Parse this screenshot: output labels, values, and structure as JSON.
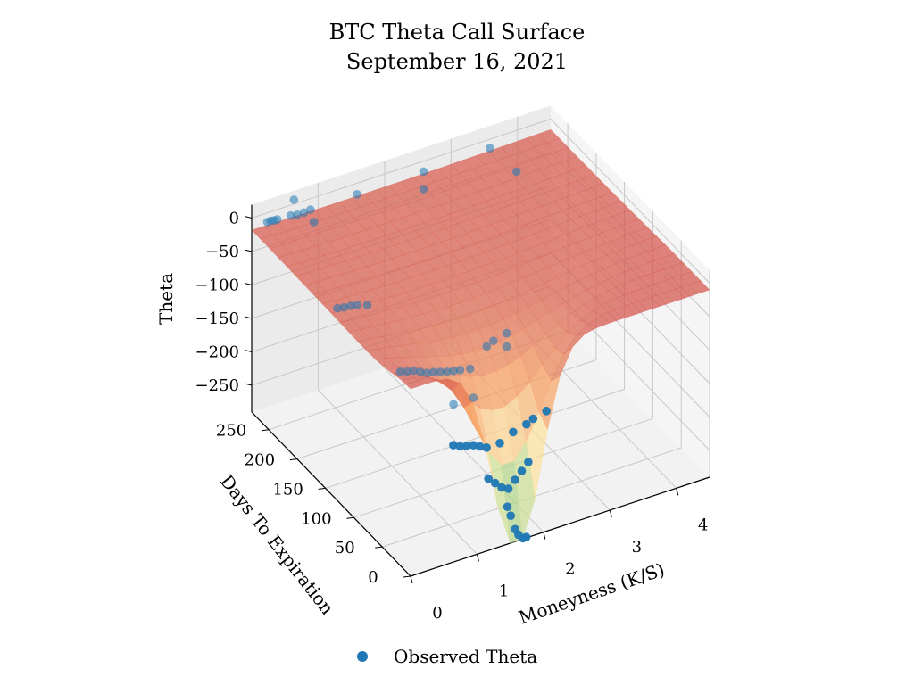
{
  "chart_data": {
    "type": "3d-surface-scatter",
    "title": "BTC Theta Call Surface",
    "subtitle": "September 16, 2021",
    "xlabel": "Moneyness (K/S)",
    "ylabel": "Days To Expiration",
    "zlabel": "Theta",
    "x_ticks": [
      "0",
      "1",
      "2",
      "3",
      "4"
    ],
    "y_ticks": [
      "0",
      "50",
      "100",
      "150",
      "200",
      "250"
    ],
    "z_ticks": [
      "0",
      "−50",
      "−100",
      "−150",
      "−200",
      "−250"
    ],
    "xlim": [
      0,
      4.5
    ],
    "ylim": [
      0,
      280
    ],
    "zlim": [
      -290,
      20
    ],
    "grid": true,
    "legend_position": "bottom",
    "legend": [
      {
        "name": "Observed Theta",
        "color": "#1f77b4"
      }
    ],
    "surface_colormap": "Spectral (red = near zero, green = strongly negative)",
    "series": [
      {
        "name": "Observed Theta",
        "type": "scatter",
        "color": "#1f77b4",
        "points": [
          {
            "x": 0.15,
            "y": 270,
            "z": -2
          },
          {
            "x": 0.2,
            "y": 270,
            "z": -2
          },
          {
            "x": 0.25,
            "y": 270,
            "z": -3
          },
          {
            "x": 0.3,
            "y": 270,
            "z": -3
          },
          {
            "x": 0.5,
            "y": 270,
            "z": -4
          },
          {
            "x": 0.6,
            "y": 270,
            "z": -6
          },
          {
            "x": 0.7,
            "y": 270,
            "z": -6
          },
          {
            "x": 0.8,
            "y": 270,
            "z": -5
          },
          {
            "x": 0.55,
            "y": 270,
            "z": 18
          },
          {
            "x": 1.5,
            "y": 270,
            "z": -5
          },
          {
            "x": 2.5,
            "y": 270,
            "z": -4
          },
          {
            "x": 3.5,
            "y": 270,
            "z": -2
          },
          {
            "x": 0.85,
            "y": 270,
            "z": -25
          },
          {
            "x": 2.5,
            "y": 270,
            "z": -30
          },
          {
            "x": 3.9,
            "y": 270,
            "z": -50
          },
          {
            "x": 0.35,
            "y": 170,
            "z": -50
          },
          {
            "x": 0.45,
            "y": 170,
            "z": -52
          },
          {
            "x": 0.55,
            "y": 170,
            "z": -53
          },
          {
            "x": 0.65,
            "y": 170,
            "z": -55
          },
          {
            "x": 0.8,
            "y": 170,
            "z": -60
          },
          {
            "x": 0.7,
            "y": 100,
            "z": -95
          },
          {
            "x": 0.8,
            "y": 100,
            "z": -98
          },
          {
            "x": 0.9,
            "y": 100,
            "z": -100
          },
          {
            "x": 1.0,
            "y": 100,
            "z": -105
          },
          {
            "x": 1.1,
            "y": 100,
            "z": -110
          },
          {
            "x": 1.2,
            "y": 100,
            "z": -112
          },
          {
            "x": 1.3,
            "y": 100,
            "z": -115
          },
          {
            "x": 1.4,
            "y": 100,
            "z": -118
          },
          {
            "x": 1.5,
            "y": 100,
            "z": -120
          },
          {
            "x": 1.6,
            "y": 100,
            "z": -122
          },
          {
            "x": 1.75,
            "y": 100,
            "z": -125
          },
          {
            "x": 2.0,
            "y": 100,
            "z": -100
          },
          {
            "x": 2.1,
            "y": 100,
            "z": -95
          },
          {
            "x": 2.3,
            "y": 100,
            "z": -90
          },
          {
            "x": 2.3,
            "y": 100,
            "z": -110
          },
          {
            "x": 1.5,
            "y": 100,
            "z": -170
          },
          {
            "x": 1.8,
            "y": 100,
            "z": -170
          },
          {
            "x": 0.9,
            "y": 30,
            "z": -150
          },
          {
            "x": 1.0,
            "y": 30,
            "z": -155
          },
          {
            "x": 1.1,
            "y": 30,
            "z": -158
          },
          {
            "x": 1.2,
            "y": 30,
            "z": -160
          },
          {
            "x": 1.3,
            "y": 30,
            "z": -165
          },
          {
            "x": 1.4,
            "y": 30,
            "z": -170
          },
          {
            "x": 1.6,
            "y": 30,
            "z": -170
          },
          {
            "x": 1.8,
            "y": 30,
            "z": -160
          },
          {
            "x": 2.0,
            "y": 30,
            "z": -155
          },
          {
            "x": 2.1,
            "y": 30,
            "z": -150
          },
          {
            "x": 2.3,
            "y": 30,
            "z": -145
          },
          {
            "x": 1.3,
            "y": 15,
            "z": -200
          },
          {
            "x": 1.4,
            "y": 15,
            "z": -210
          },
          {
            "x": 1.5,
            "y": 15,
            "z": -220
          },
          {
            "x": 1.6,
            "y": 15,
            "z": -225
          },
          {
            "x": 1.7,
            "y": 15,
            "z": -215
          },
          {
            "x": 1.8,
            "y": 15,
            "z": -205
          },
          {
            "x": 1.9,
            "y": 15,
            "z": -195
          },
          {
            "x": 1.5,
            "y": 5,
            "z": -240
          },
          {
            "x": 1.55,
            "y": 5,
            "z": -255
          },
          {
            "x": 1.6,
            "y": 3,
            "z": -275
          },
          {
            "x": 1.65,
            "y": 3,
            "z": -285
          },
          {
            "x": 1.7,
            "y": 1,
            "z": -300
          },
          {
            "x": 1.75,
            "y": 1,
            "z": -340
          }
        ]
      }
    ]
  }
}
